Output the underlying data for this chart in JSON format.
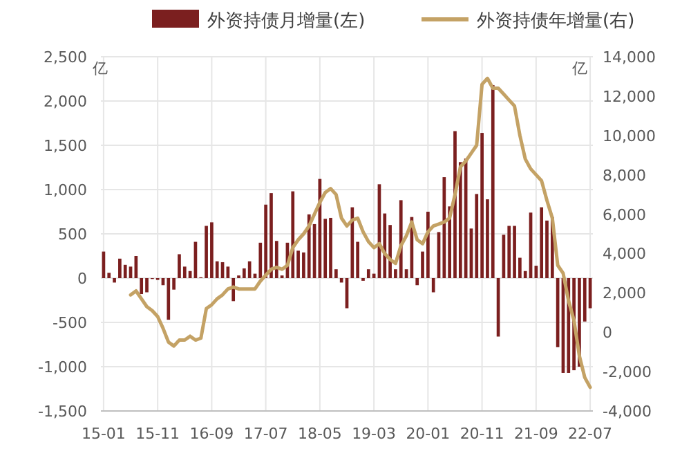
{
  "chart_data": {
    "type": "bar",
    "legend": "top",
    "grid": true,
    "ylabel": "亿",
    "y2label": "亿",
    "categories": [
      "15-01",
      null,
      null,
      null,
      null,
      null,
      null,
      null,
      null,
      null,
      "15-11",
      null,
      null,
      null,
      null,
      null,
      null,
      null,
      null,
      null,
      "16-09",
      null,
      null,
      null,
      null,
      null,
      null,
      null,
      null,
      null,
      "17-07",
      null,
      null,
      null,
      null,
      null,
      null,
      null,
      null,
      null,
      "18-05",
      null,
      null,
      null,
      null,
      null,
      null,
      null,
      null,
      null,
      "19-03",
      null,
      null,
      null,
      null,
      null,
      null,
      null,
      null,
      null,
      "20-01",
      null,
      null,
      null,
      null,
      null,
      null,
      null,
      null,
      null,
      "20-11",
      null,
      null,
      null,
      null,
      null,
      null,
      null,
      null,
      null,
      "21-09",
      null,
      null,
      null,
      null,
      null,
      null,
      null,
      null,
      null,
      "22-07"
    ],
    "series": [
      {
        "name": "外资持债月增量(左)",
        "color": "#7b1f1f",
        "values": [
          300,
          60,
          -50,
          220,
          150,
          130,
          250,
          -180,
          -160,
          -10,
          -20,
          -80,
          -470,
          -130,
          270,
          130,
          80,
          410,
          10,
          590,
          630,
          190,
          180,
          130,
          -260,
          30,
          110,
          190,
          50,
          400,
          830,
          960,
          420,
          30,
          400,
          980,
          310,
          290,
          720,
          610,
          1120,
          670,
          680,
          100,
          -50,
          -340,
          800,
          410,
          -30,
          100,
          50,
          1060,
          730,
          600,
          100,
          880,
          100,
          690,
          -80,
          300,
          750,
          -160,
          520,
          1140,
          810,
          1660,
          1310,
          1350,
          560,
          950,
          1640,
          890,
          2180,
          -660,
          490,
          590,
          590,
          230,
          80,
          740,
          140,
          800,
          650,
          690,
          -780,
          -1070,
          -1070,
          -1040,
          -1000,
          -490,
          -340
        ]
      },
      {
        "name": "外资持债年增量(右)",
        "type": "line",
        "axis": "y2",
        "color": "#c4a265",
        "values": [
          null,
          null,
          null,
          null,
          null,
          1900,
          2100,
          1700,
          1300,
          1100,
          800,
          200,
          -500,
          -700,
          -400,
          -400,
          -200,
          -400,
          -300,
          1200,
          1400,
          1700,
          1900,
          2200,
          2300,
          2200,
          2200,
          2200,
          2200,
          2600,
          2900,
          3200,
          3300,
          3200,
          3400,
          4300,
          4700,
          5000,
          5400,
          6000,
          6600,
          7100,
          7300,
          7000,
          5800,
          5400,
          5700,
          5800,
          5100,
          4600,
          4300,
          4500,
          4000,
          3700,
          3500,
          4400,
          4900,
          5600,
          4700,
          4500,
          5100,
          5400,
          5500,
          5600,
          5800,
          7000,
          8400,
          8700,
          9100,
          9500,
          12600,
          12900,
          12400,
          12400,
          12100,
          11800,
          11500,
          10000,
          8800,
          8300,
          8000,
          7700,
          6700,
          5800,
          3400,
          3000,
          1600,
          600,
          -1200,
          -2300,
          -2800
        ]
      }
    ],
    "ylim": [
      -1500,
      2500
    ],
    "yticks": [
      {
        "value": -1500,
        "label": "-1,500"
      },
      {
        "value": -1000,
        "label": "-1,000"
      },
      -500,
      0,
      500,
      {
        "value": 1000,
        "label": "1,000"
      },
      {
        "value": 1500,
        "label": "1,500"
      },
      {
        "value": 2000,
        "label": "2,000"
      },
      {
        "value": 2500,
        "label": "2,500"
      }
    ],
    "y2lim": [
      -4000,
      14000
    ],
    "y2ticks": [
      {
        "value": -4000,
        "label": "-4,000"
      },
      {
        "value": -2000,
        "label": "-2,000"
      },
      0,
      {
        "value": 2000,
        "label": "2,000"
      },
      {
        "value": 4000,
        "label": "4,000"
      },
      {
        "value": 6000,
        "label": "6,000"
      },
      {
        "value": 8000,
        "label": "8,000"
      },
      {
        "value": 10000,
        "label": "10,000"
      },
      {
        "value": 12000,
        "label": "12,000"
      },
      {
        "value": 14000,
        "label": "14,000"
      }
    ]
  }
}
